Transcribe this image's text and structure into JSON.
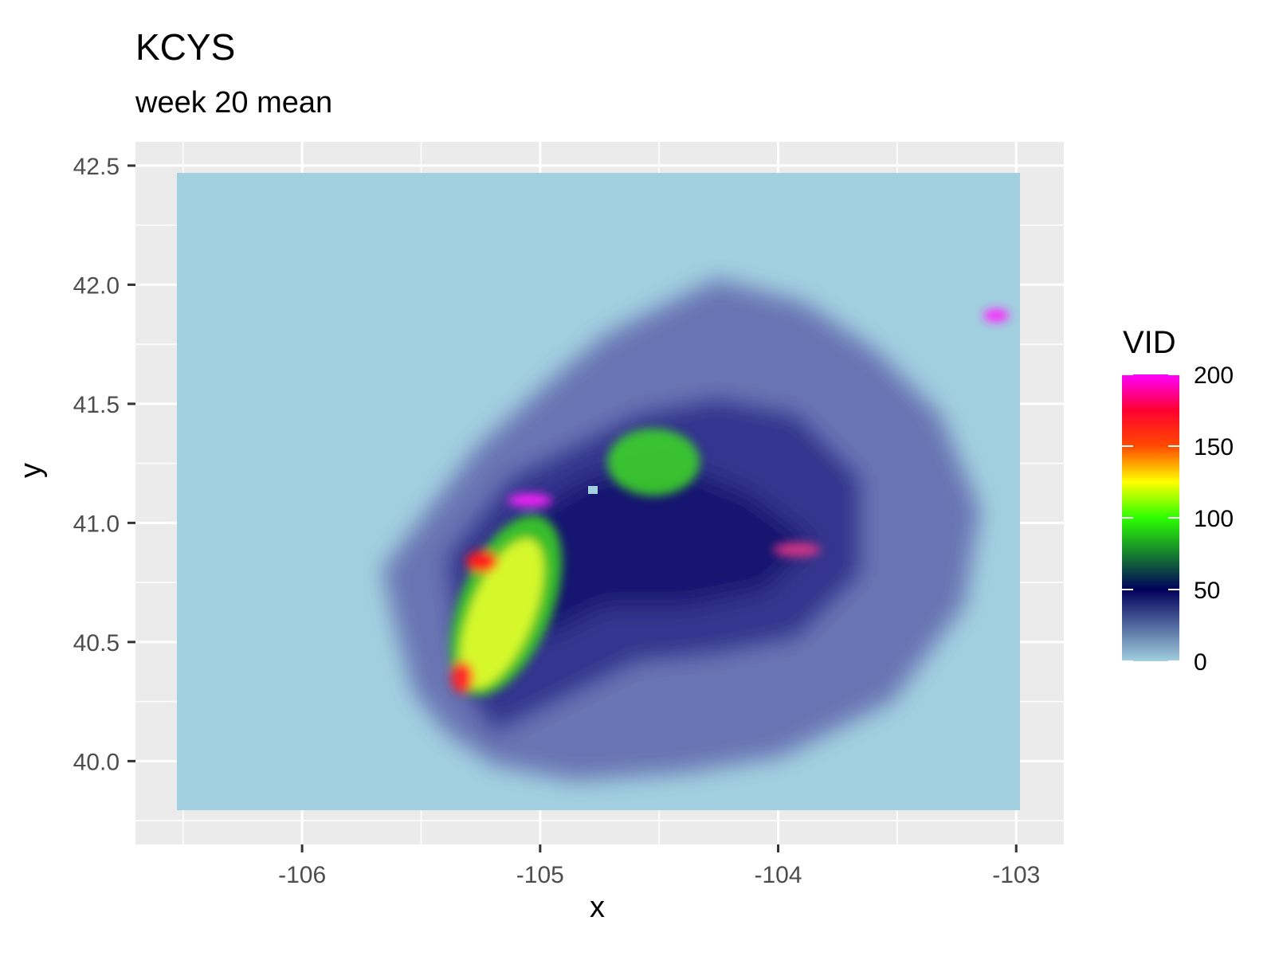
{
  "chart_data": {
    "type": "heatmap",
    "title": "KCYS",
    "subtitle": "week 20 mean",
    "xlabel": "x",
    "ylabel": "y",
    "xlim": [
      -106.5,
      -103
    ],
    "ylim": [
      39.8,
      42.5
    ],
    "x_ticks": [
      -106,
      -105,
      -104,
      -103
    ],
    "y_ticks": [
      40.0,
      40.5,
      41.0,
      41.5,
      42.0,
      42.5
    ],
    "x_tick_labels": [
      "-106",
      "-105",
      "-104",
      "-103"
    ],
    "y_tick_labels": [
      "40.0",
      "40.5",
      "41.0",
      "41.5",
      "42.0",
      "42.5"
    ],
    "legend": {
      "title": "VID",
      "placement": "right",
      "min": 0,
      "max": 200,
      "ticks": [
        0,
        50,
        100,
        150,
        200
      ],
      "tick_labels": [
        "0",
        "50",
        "100",
        "150",
        "200"
      ],
      "gradient": [
        {
          "value": 0,
          "color": "#a2d0e0"
        },
        {
          "value": 50,
          "color": "#00005a"
        },
        {
          "value": 100,
          "color": "#2cff00"
        },
        {
          "value": 125,
          "color": "#ffff00"
        },
        {
          "value": 150,
          "color": "#ff4a00"
        },
        {
          "value": 175,
          "color": "#ff0030"
        },
        {
          "value": 200,
          "color": "#ff00ff"
        }
      ]
    },
    "features": [
      {
        "x": -105.27,
        "y": 40.75,
        "value": 125
      },
      {
        "x": -105.25,
        "y": 40.87,
        "value": 170
      },
      {
        "x": -105.35,
        "y": 40.35,
        "value": 165
      },
      {
        "x": -105.2,
        "y": 41.1,
        "value": 190
      },
      {
        "x": -104.55,
        "y": 41.27,
        "value": 90
      },
      {
        "x": -103.9,
        "y": 40.9,
        "value": 160
      },
      {
        "x": -103.1,
        "y": 41.88,
        "value": 195
      }
    ]
  }
}
